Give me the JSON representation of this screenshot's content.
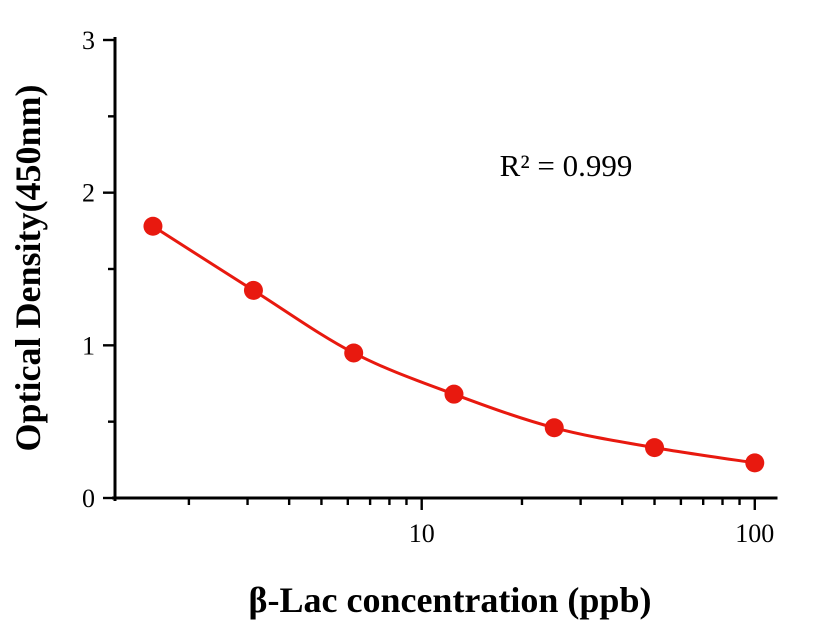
{
  "chart_data": {
    "type": "scatter",
    "x": [
      1.56,
      3.125,
      6.25,
      12.5,
      25,
      50,
      100
    ],
    "y": [
      1.78,
      1.36,
      0.95,
      0.68,
      0.46,
      0.33,
      0.23
    ],
    "title": "",
    "xlabel": "β-Lac concentration (ppb)",
    "ylabel": "Optical Density(450nm)",
    "annotation": "R² = 0.999",
    "x_scale": "log",
    "xlim": [
      1.2,
      115
    ],
    "ylim": [
      0,
      3
    ],
    "x_ticks_labeled": [
      10,
      100
    ],
    "x_ticks_minor": [
      2,
      3,
      4,
      5,
      6,
      7,
      8,
      9,
      20,
      30,
      40,
      50,
      60,
      70,
      80,
      90
    ],
    "y_ticks_labeled": [
      0,
      1,
      2,
      3
    ],
    "y_ticks_minor": [
      0.5,
      1.5,
      2.5
    ],
    "grid": "off",
    "legend": "none",
    "line_color": "#e8190f",
    "marker_color": "#e8190f",
    "marker_radius": 9.5
  }
}
